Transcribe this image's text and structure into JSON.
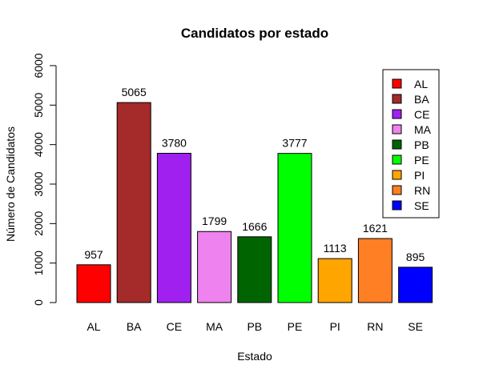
{
  "chart_data": {
    "type": "bar",
    "title": "Candidatos por estado",
    "xlabel": "Estado",
    "ylabel": "Número de Candidatos",
    "ylim": [
      0,
      6000
    ],
    "yticks": [
      "0",
      "1000",
      "2000",
      "3000",
      "4000",
      "5000",
      "6000"
    ],
    "categories": [
      "AL",
      "BA",
      "CE",
      "MA",
      "PB",
      "PE",
      "PI",
      "RN",
      "SE"
    ],
    "values": [
      957,
      5065,
      3780,
      1799,
      1666,
      3777,
      1113,
      1621,
      895
    ],
    "value_labels": [
      "957",
      "5065",
      "3780",
      "1799",
      "1666",
      "3777",
      "1113",
      "1621",
      "895"
    ],
    "colors": [
      "#ff0000",
      "#a52a2a",
      "#a020f0",
      "#ee82ee",
      "#006400",
      "#00ff00",
      "#ffa500",
      "#ff7f24",
      "#0000ff"
    ],
    "legend": {
      "placement": "top-right",
      "entries": [
        "AL",
        "BA",
        "CE",
        "MA",
        "PB",
        "PE",
        "PI",
        "RN",
        "SE"
      ]
    },
    "grid": false
  }
}
